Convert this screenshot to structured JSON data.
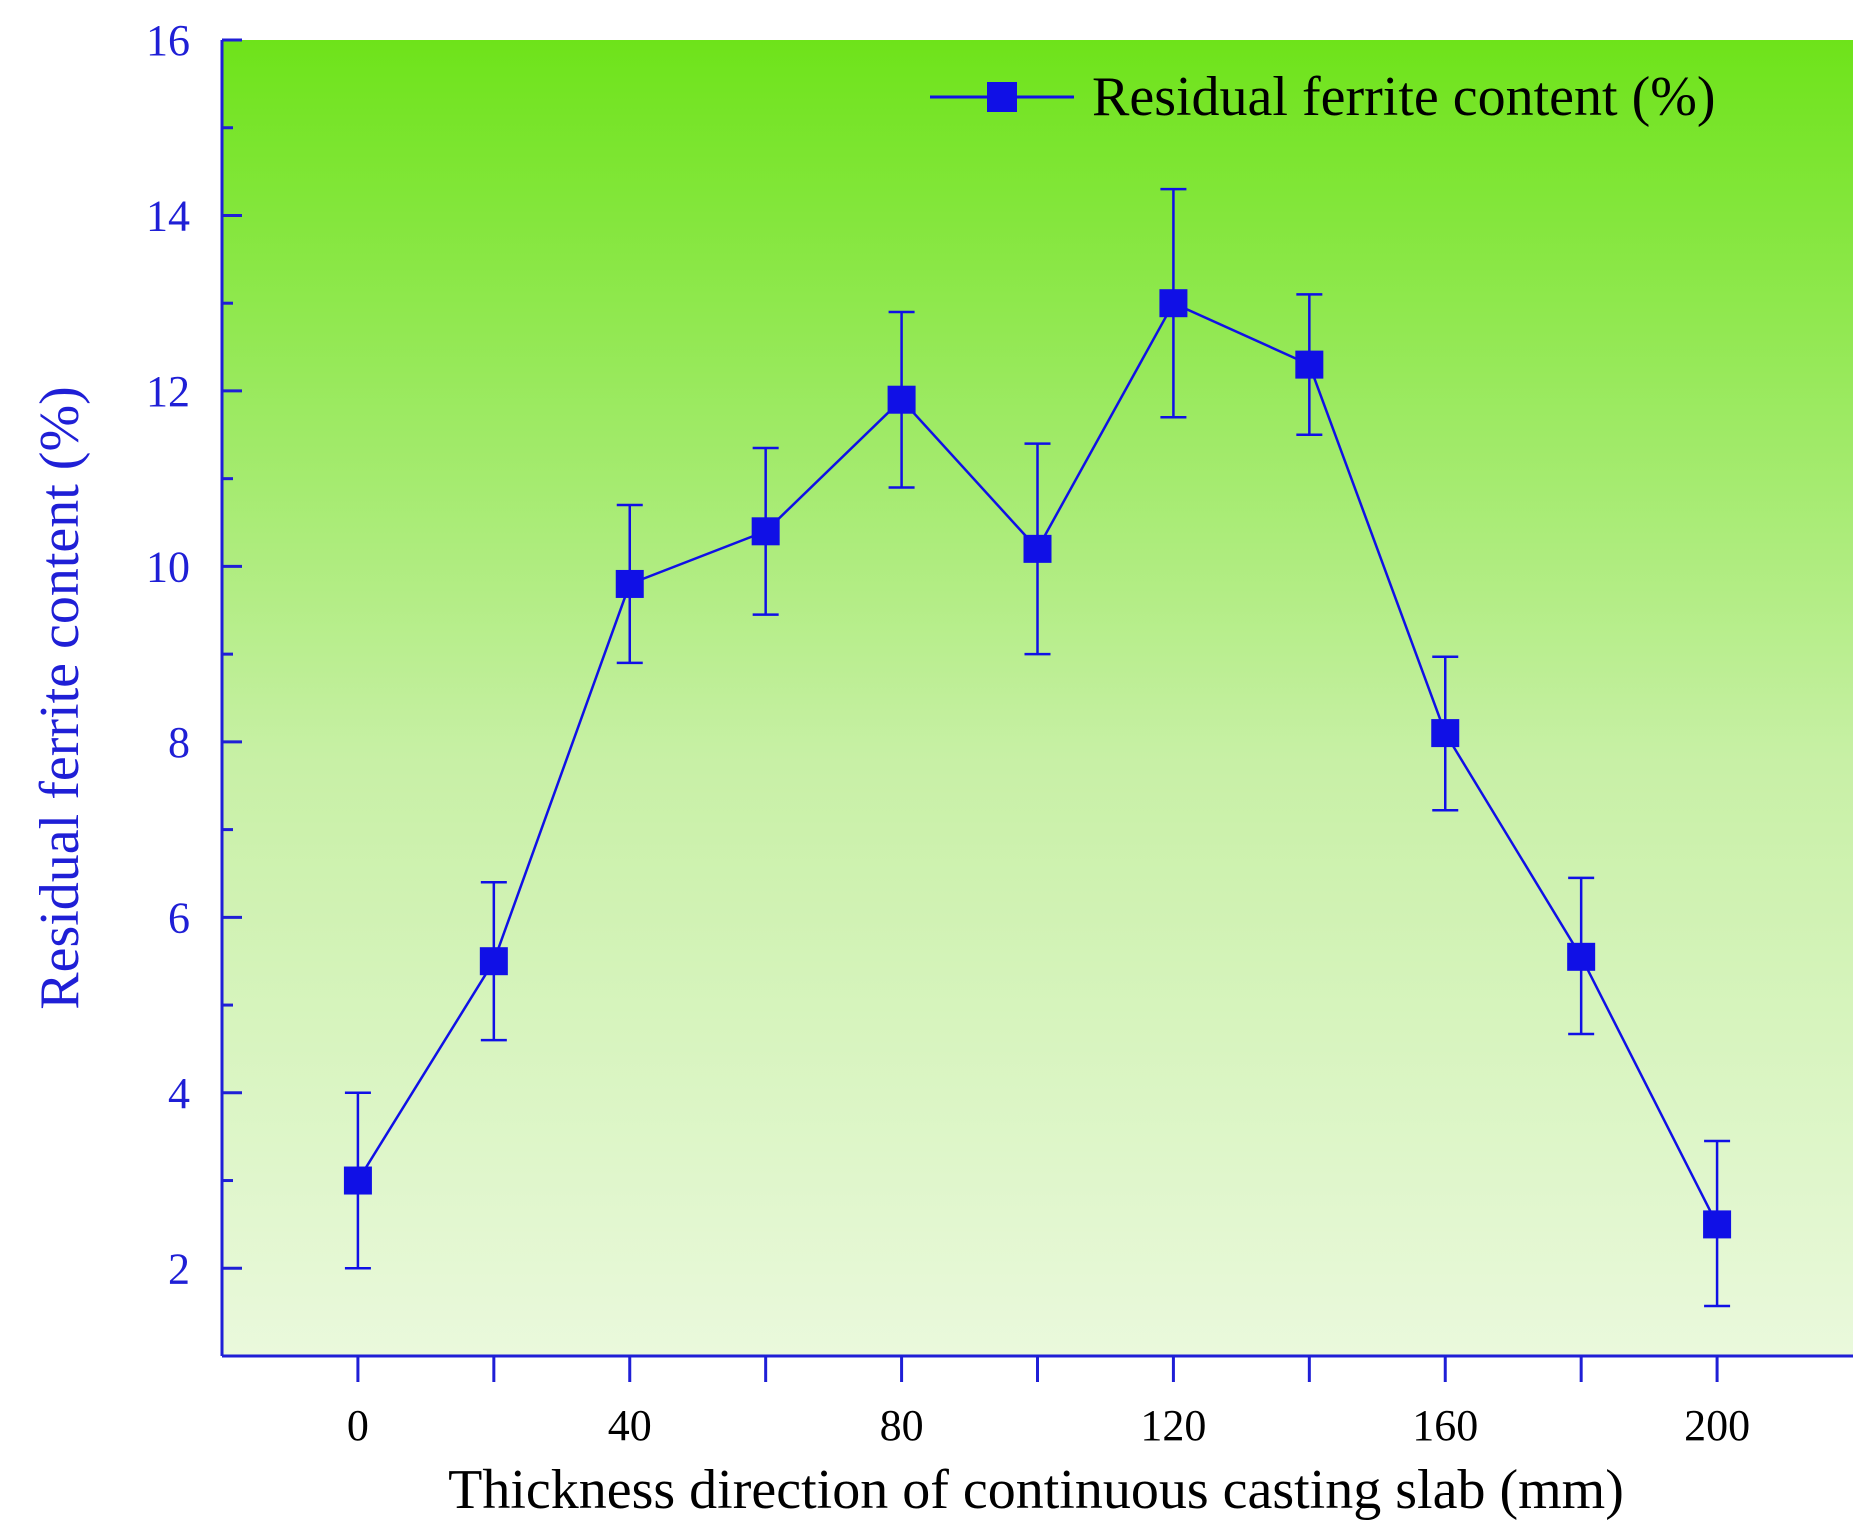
{
  "chart_data": {
    "type": "line",
    "xlabel": "Thickness direction of continuous casting slab (mm)",
    "ylabel": "Residual ferrite content (%)",
    "xlim": [
      -20,
      220
    ],
    "ylim": [
      1,
      16
    ],
    "xticks": [
      0,
      20,
      40,
      60,
      80,
      100,
      120,
      140,
      160,
      180,
      200
    ],
    "xtick_labels": [
      "0",
      "",
      "40",
      "",
      "80",
      "",
      "120",
      "",
      "160",
      "",
      "200"
    ],
    "yticks": [
      2,
      4,
      6,
      8,
      10,
      12,
      14,
      16
    ],
    "yticks_minor": [
      3,
      5,
      7,
      9,
      11,
      13,
      15
    ],
    "legend": {
      "position": "top-right",
      "label": "Residual ferrite content (%)"
    },
    "series": [
      {
        "name": "Residual ferrite content (%)",
        "x": [
          0,
          20,
          40,
          60,
          80,
          100,
          120,
          140,
          160,
          180,
          200
        ],
        "values": [
          3.0,
          5.5,
          9.8,
          10.4,
          11.9,
          10.2,
          13.0,
          12.3,
          8.1,
          5.55,
          2.5
        ],
        "err_upper": [
          4.0,
          6.4,
          10.7,
          11.35,
          12.9,
          11.4,
          14.3,
          13.1,
          8.97,
          6.45,
          3.45
        ],
        "err_lower": [
          2.0,
          4.6,
          8.9,
          9.45,
          10.9,
          9.0,
          11.7,
          11.5,
          7.22,
          4.67,
          1.57
        ]
      }
    ],
    "colors": {
      "series": "#1010e6",
      "axis": "#1f1fd6",
      "bg_top": "#6ee31a",
      "bg_bottom": "#eaf9dc"
    }
  }
}
